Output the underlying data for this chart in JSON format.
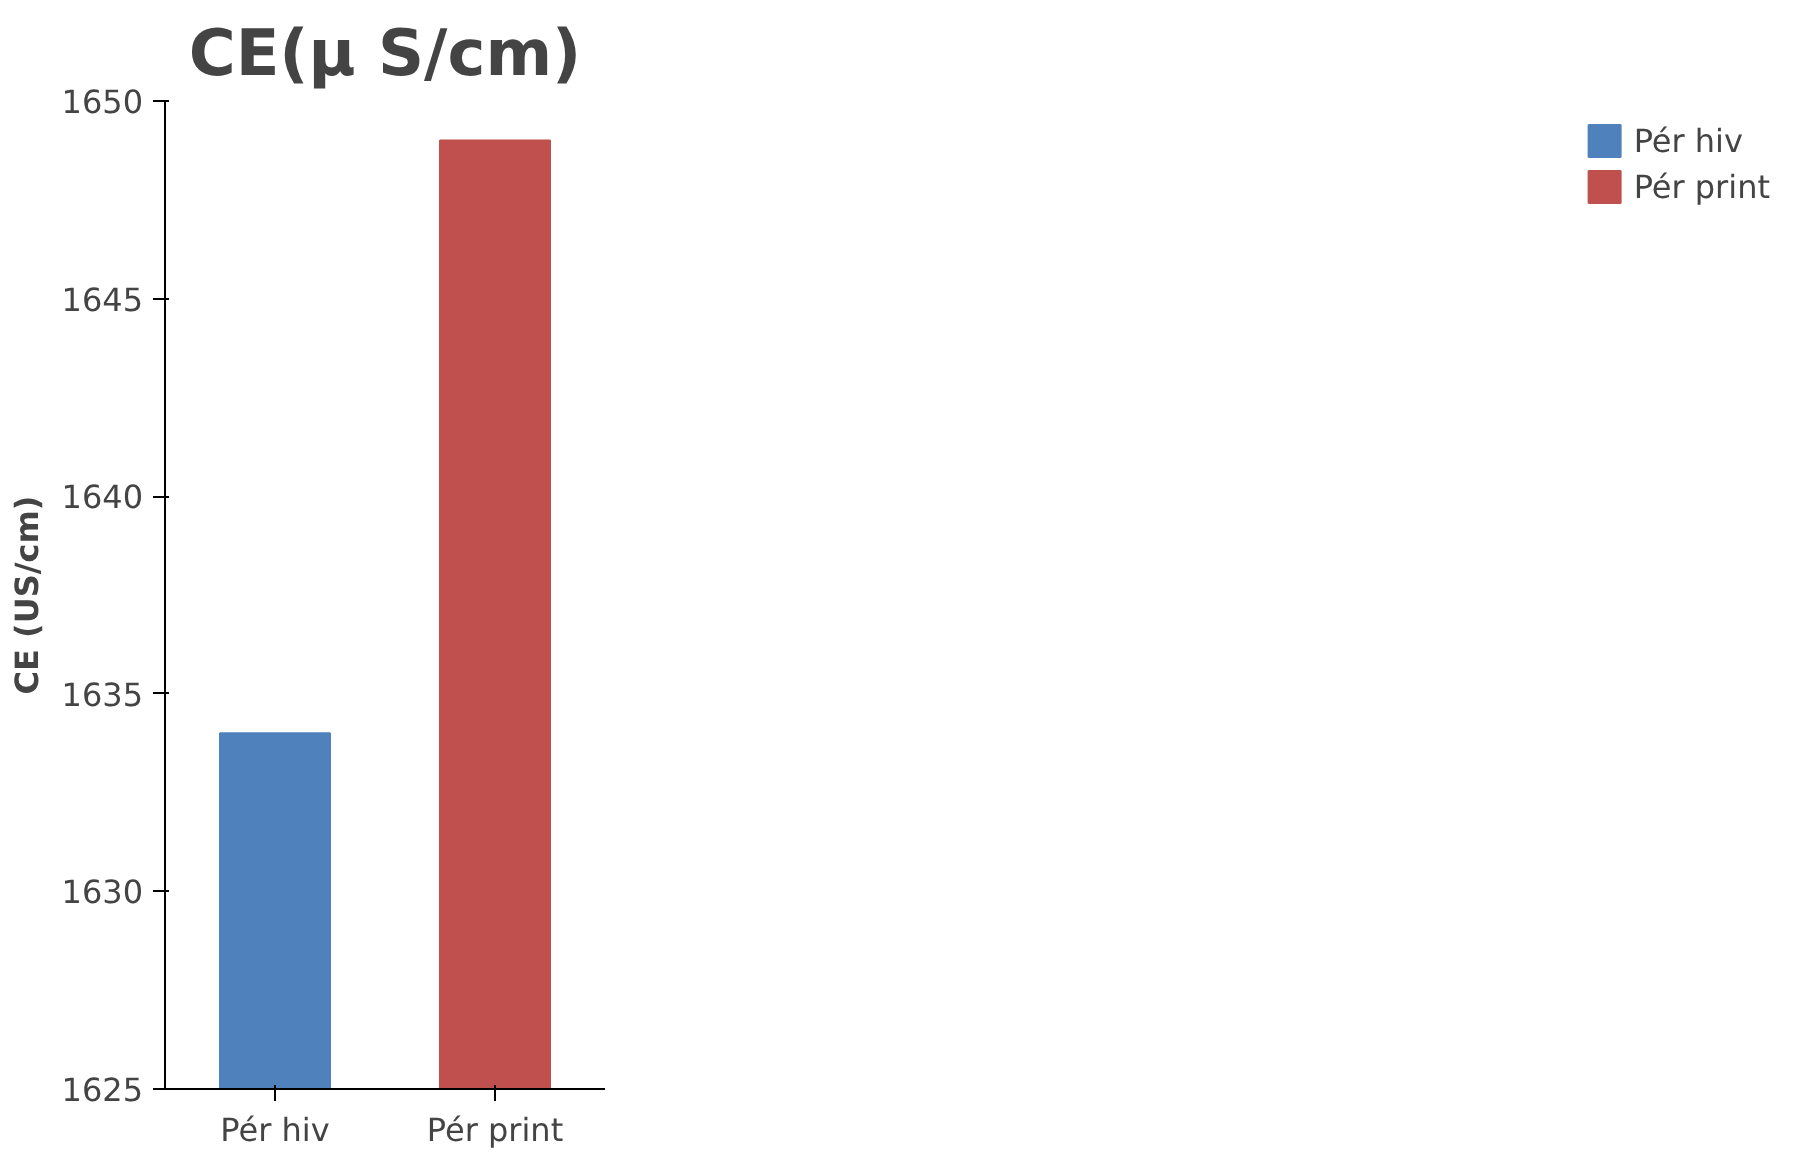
{
  "chart_data": {
    "type": "bar",
    "title": "CE(µ S/cm)",
    "ylabel": "CE (US/cm)",
    "categories": [
      "Pér hiv",
      "Pér print"
    ],
    "series": [
      {
        "name": "Pér hiv",
        "color": "#4f81bd",
        "values": [
          1634,
          null
        ]
      },
      {
        "name": "Pér print",
        "color": "#c0504d",
        "values": [
          null,
          1649
        ]
      }
    ],
    "ylim": [
      1625,
      1650
    ],
    "yticks": [
      1625,
      1630,
      1635,
      1640,
      1645,
      1650
    ],
    "legend": "right"
  }
}
